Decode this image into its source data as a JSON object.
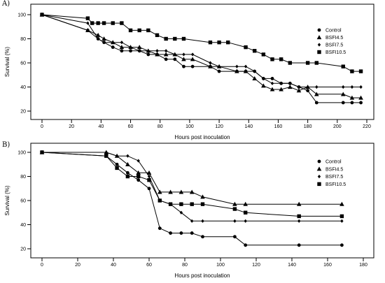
{
  "chart_data": [
    {
      "type": "line",
      "panel_label": "A)",
      "xlabel": "Hours post inoculation",
      "ylabel": "Survival (%)",
      "xlim": [
        0,
        220
      ],
      "ylim": [
        20,
        100
      ],
      "xticks": [
        "0",
        "20",
        "40",
        "60",
        "80",
        "100",
        "120",
        "140",
        "160",
        "180",
        "200",
        "220"
      ],
      "yticks": [
        "20",
        "40",
        "60",
        "80",
        "100"
      ],
      "legend_position": "top-right",
      "series": [
        {
          "name": "Control",
          "marker": "circle",
          "x": [
            0,
            31,
            38,
            42,
            48,
            54,
            60,
            66,
            72,
            78,
            84,
            90,
            96,
            102,
            114,
            120,
            132,
            138,
            144,
            150,
            156,
            162,
            168,
            174,
            180,
            186,
            204,
            210,
            216
          ],
          "y": [
            100,
            87,
            80,
            77,
            73,
            70,
            70,
            70,
            67,
            67,
            63,
            63,
            57,
            57,
            57,
            53,
            53,
            53,
            53,
            47,
            47,
            43,
            43,
            40,
            37,
            27,
            27,
            27,
            27
          ]
        },
        {
          "name": "BSFI4.5",
          "marker": "triangle",
          "x": [
            0,
            31,
            38,
            42,
            48,
            54,
            60,
            66,
            72,
            78,
            84,
            90,
            96,
            102,
            114,
            120,
            132,
            138,
            144,
            150,
            156,
            162,
            168,
            174,
            180,
            186,
            204,
            210,
            216
          ],
          "y": [
            100,
            87,
            83,
            80,
            77,
            73,
            73,
            73,
            70,
            67,
            67,
            67,
            63,
            63,
            57,
            57,
            53,
            53,
            47,
            41,
            38,
            38,
            40,
            37,
            40,
            34,
            34,
            31,
            31
          ]
        },
        {
          "name": "BSFI7.5",
          "marker": "diamond",
          "x": [
            0,
            31,
            38,
            42,
            48,
            54,
            60,
            66,
            72,
            78,
            84,
            90,
            96,
            102,
            114,
            120,
            132,
            138,
            144,
            150,
            156,
            162,
            168,
            174,
            180,
            186,
            204,
            210,
            216
          ],
          "y": [
            100,
            93,
            80,
            77,
            77,
            77,
            73,
            70,
            70,
            70,
            70,
            67,
            67,
            67,
            60,
            57,
            57,
            57,
            53,
            47,
            43,
            43,
            43,
            40,
            40,
            40,
            40,
            40,
            40
          ]
        },
        {
          "name": "BSFI10.5",
          "marker": "square",
          "x": [
            0,
            31,
            34,
            38,
            42,
            48,
            54,
            60,
            66,
            72,
            78,
            84,
            90,
            96,
            114,
            120,
            126,
            138,
            144,
            150,
            156,
            162,
            168,
            180,
            186,
            204,
            210,
            216
          ],
          "y": [
            100,
            97,
            93,
            93,
            93,
            93,
            93,
            87,
            87,
            87,
            83,
            80,
            80,
            80,
            77,
            77,
            77,
            73,
            70,
            67,
            63,
            63,
            60,
            60,
            60,
            57,
            53,
            53
          ]
        }
      ]
    },
    {
      "type": "line",
      "panel_label": "B)",
      "xlabel": "Hours post inoculation",
      "ylabel": "Survival (%)",
      "xlim": [
        0,
        180
      ],
      "ylim": [
        20,
        100
      ],
      "xticks": [
        "0",
        "20",
        "40",
        "60",
        "80",
        "100",
        "120",
        "140",
        "160",
        "180"
      ],
      "yticks": [
        "20",
        "40",
        "60",
        "80",
        "100"
      ],
      "legend_position": "top-right",
      "series": [
        {
          "name": "Control",
          "marker": "circle",
          "x": [
            0,
            36,
            42,
            48,
            54,
            60,
            66,
            72,
            78,
            84,
            90,
            108,
            114,
            144,
            168
          ],
          "y": [
            100,
            97,
            90,
            83,
            77,
            70,
            37,
            33,
            33,
            33,
            30,
            30,
            23,
            23,
            23
          ]
        },
        {
          "name": "BSFI4.5",
          "marker": "triangle",
          "x": [
            0,
            36,
            42,
            48,
            54,
            60,
            66,
            72,
            78,
            84,
            90,
            108,
            114,
            144,
            168
          ],
          "y": [
            100,
            100,
            97,
            90,
            83,
            83,
            67,
            67,
            67,
            67,
            63,
            57,
            57,
            57,
            57
          ]
        },
        {
          "name": "BSFI7.5",
          "marker": "diamond",
          "x": [
            0,
            36,
            42,
            48,
            54,
            60,
            66,
            72,
            78,
            84,
            90,
            108,
            114,
            144,
            168
          ],
          "y": [
            100,
            100,
            97,
            97,
            93,
            80,
            60,
            57,
            50,
            43,
            43,
            43,
            43,
            43,
            43
          ]
        },
        {
          "name": "BSFI10.5",
          "marker": "square",
          "x": [
            0,
            36,
            42,
            48,
            54,
            60,
            66,
            72,
            78,
            84,
            90,
            108,
            114,
            144,
            168
          ],
          "y": [
            100,
            97,
            87,
            80,
            80,
            77,
            60,
            57,
            57,
            57,
            57,
            53,
            50,
            47,
            47
          ]
        }
      ]
    }
  ]
}
